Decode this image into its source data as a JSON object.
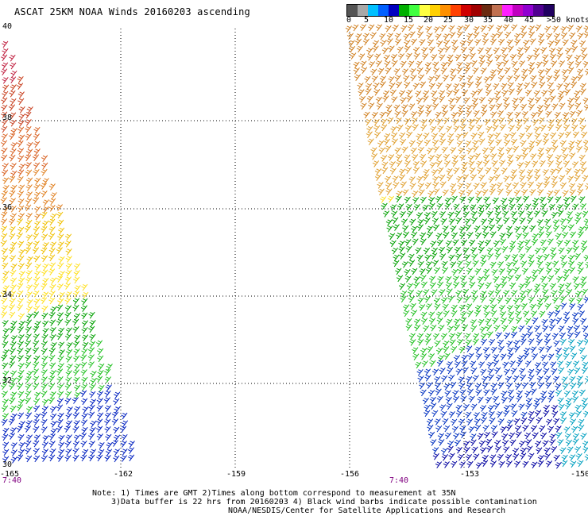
{
  "title": "ASCAT 25KM NOAA Winds 20160203 ascending",
  "colorbar": {
    "colors": [
      "#555555",
      "#a8a8a8",
      "#00c0ff",
      "#0060ff",
      "#0000c0",
      "#00b000",
      "#40ff40",
      "#ffff40",
      "#ffd000",
      "#ff9000",
      "#ff4000",
      "#d00000",
      "#a00000",
      "#6a2a10",
      "#c07050",
      "#ff20ff",
      "#c000c0",
      "#9000d0",
      "#500090",
      "#200060"
    ],
    "labels": [
      "0",
      "5",
      "10",
      "15",
      "20",
      "25",
      "30",
      "35",
      "40",
      "45",
      ">50 knots"
    ]
  },
  "axes": {
    "lat_labels": [
      "40",
      "38",
      "36",
      "34",
      "32",
      "30"
    ],
    "lon_labels": [
      "-165",
      "-162",
      "-159",
      "-156",
      "-153",
      "-150"
    ]
  },
  "times": [
    "7:40",
    "7:40"
  ],
  "notes": {
    "line1": "Note: 1) Times are GMT 2)Times along bottom correspond to measurement at 35N",
    "line2": "3)Data buffer is 22 hrs from 20160203 4) Black wind barbs indicate possible contamination",
    "line3": "NOAA/NESDIS/Center for Satellite Applications and Research"
  },
  "swaths": [
    {
      "name": "west-swath",
      "band_color": [
        "#c02040",
        "#c84020",
        "#d86020",
        "#e08020",
        "#f0c000",
        "#ffe020",
        "#00a000",
        "#20c020",
        "#0020c0"
      ]
    },
    {
      "name": "east-swath",
      "band_color": [
        "#d08020",
        "#e0a030",
        "#f0c030",
        "#f8e040",
        "#ffe020",
        "#00a000",
        "#20c020",
        "#0030c0",
        "#0000a0",
        "#00a0c0"
      ]
    }
  ]
}
